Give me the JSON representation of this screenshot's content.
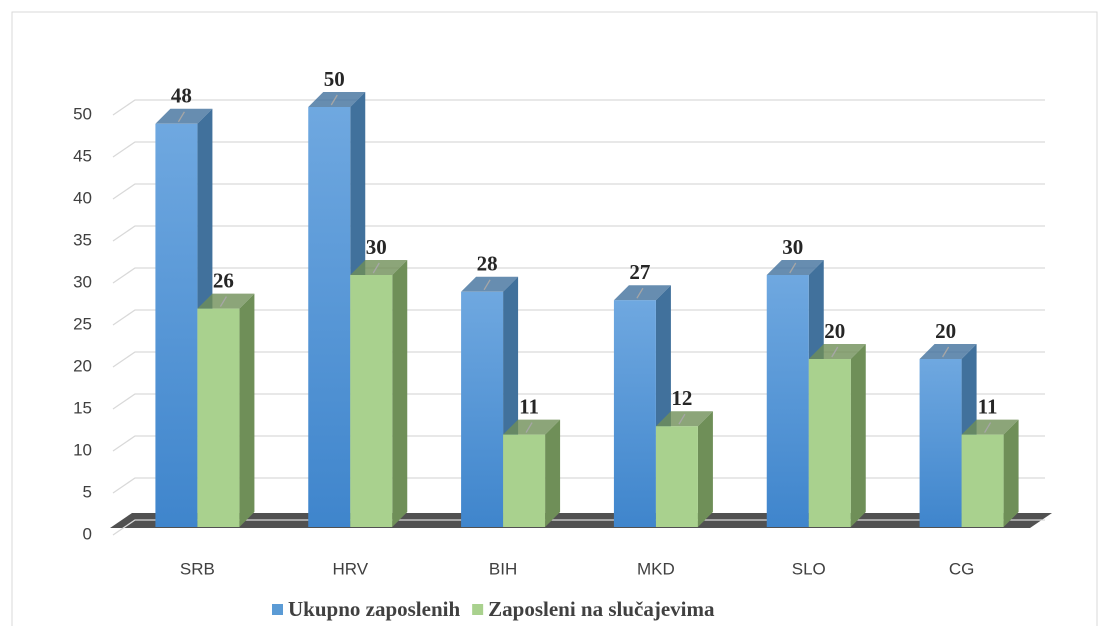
{
  "chart_data": {
    "type": "bar3d",
    "categories": [
      "SRB",
      "HRV",
      "BIH",
      "MKD",
      "SLO",
      "CG"
    ],
    "series": [
      {
        "name": "Ukupno zaposlenih",
        "color": "#5b9bd5",
        "side": "#41719c",
        "values": [
          48,
          50,
          28,
          27,
          30,
          20
        ]
      },
      {
        "name": "Zaposleni na slučajevima",
        "color": "#a9d18e",
        "side": "#6f8f58",
        "values": [
          26,
          30,
          11,
          12,
          20,
          11
        ]
      }
    ],
    "ylim": [
      0,
      50
    ],
    "yticks": [
      0,
      5,
      10,
      15,
      20,
      25,
      30,
      35,
      40,
      45,
      50
    ],
    "grid": true
  }
}
